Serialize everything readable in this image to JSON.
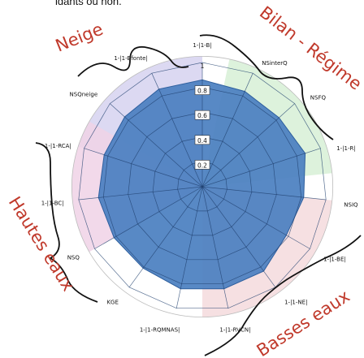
{
  "header_fragment": "idants ou non.",
  "chart_data": {
    "type": "radar",
    "categories": [
      "1-|1-B|",
      "NSinterQ",
      "NSFQ",
      "1-|1-R|",
      "NSIQ",
      "1-|1-BE|",
      "1-|1-NE|",
      "1-|1-RVCN|",
      "1-|1-RQMNAS|",
      "KGE",
      "NSQ",
      "1-|1-BC|",
      "1-|1-RCA|",
      "NSQneige",
      "1-|1-Bfonte|"
    ],
    "radial_ticks": [
      "0.2",
      "0.4",
      "0.6",
      "0.8",
      "1"
    ],
    "rlim": [
      0,
      1
    ],
    "series": [
      {
        "values": [
          0.86,
          0.84,
          0.83,
          0.87,
          0.82,
          0.78,
          0.84,
          0.84,
          0.84,
          0.81,
          0.82,
          0.84,
          0.83,
          0.84,
          0.86
        ]
      }
    ],
    "group_labels": [
      {
        "text": "Neige",
        "color": "#c0392b"
      },
      {
        "text": "Bilan - Régime",
        "color": "#c0392b"
      },
      {
        "text": "Hautes eaux",
        "color": "#c0392b"
      },
      {
        "text": "Basses eaux",
        "color": "#c0392b"
      }
    ],
    "colors": {
      "fill": "#4a7fc0",
      "stroke": "#2e5f9e",
      "grid": "#1f3f6e",
      "sector_neige": "#d6d2f0",
      "sector_bilan": "#d7f0d6",
      "sector_hautes": "#f0d2e6",
      "sector_basses": "#f5dadd",
      "brace": "#111111",
      "group_label": "#c0392b"
    }
  }
}
